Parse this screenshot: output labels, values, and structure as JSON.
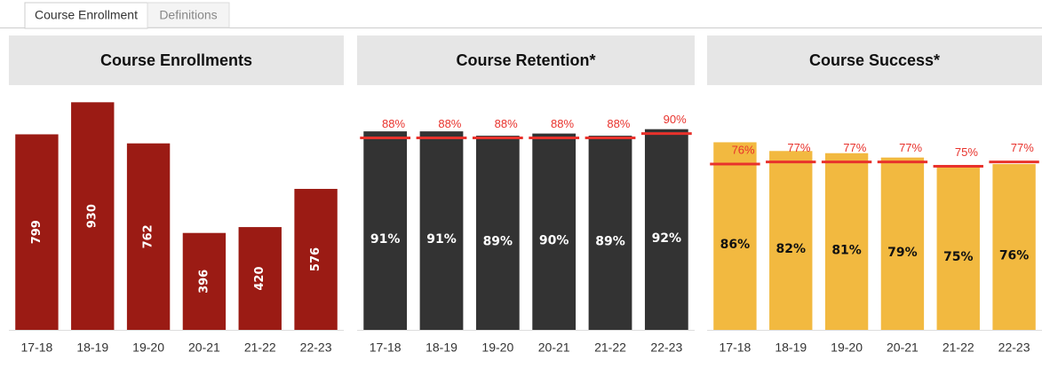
{
  "tabs": [
    "Course Enrollment",
    "Definitions"
  ],
  "chart_data": [
    {
      "type": "bar",
      "title": "Course Enrollments",
      "categories": [
        "17-18",
        "18-19",
        "19-20",
        "20-21",
        "21-22",
        "22-23"
      ],
      "values": [
        799,
        930,
        762,
        396,
        420,
        576
      ],
      "color": "#9b1b14",
      "label_color": "#ffffff",
      "label_rotation": -90,
      "ylim": [
        0,
        1000
      ]
    },
    {
      "type": "bar",
      "title": "Course Retention*",
      "categories": [
        "17-18",
        "18-19",
        "19-20",
        "20-21",
        "21-22",
        "22-23"
      ],
      "values": [
        91,
        91,
        89,
        90,
        89,
        92
      ],
      "value_labels": [
        "91%",
        "91%",
        "89%",
        "90%",
        "89%",
        "92%"
      ],
      "targets": [
        88,
        88,
        88,
        88,
        88,
        90
      ],
      "target_labels": [
        "88%",
        "88%",
        "88%",
        "88%",
        "88%",
        "90%"
      ],
      "color": "#333333",
      "label_color": "#ffffff",
      "target_color": "#e8322c",
      "ylim": [
        0,
        100
      ]
    },
    {
      "type": "bar",
      "title": "Course Success*",
      "categories": [
        "17-18",
        "18-19",
        "19-20",
        "20-21",
        "21-22",
        "22-23"
      ],
      "values": [
        86,
        82,
        81,
        79,
        75,
        76
      ],
      "value_labels": [
        "86%",
        "82%",
        "81%",
        "79%",
        "75%",
        "76%"
      ],
      "targets": [
        76,
        77,
        77,
        77,
        75,
        77
      ],
      "target_labels": [
        "76%",
        "77%",
        "77%",
        "77%",
        "75%",
        "77%"
      ],
      "color": "#f2b940",
      "label_color": "#111111",
      "target_color": "#e8322c",
      "ylim": [
        0,
        100
      ]
    }
  ]
}
